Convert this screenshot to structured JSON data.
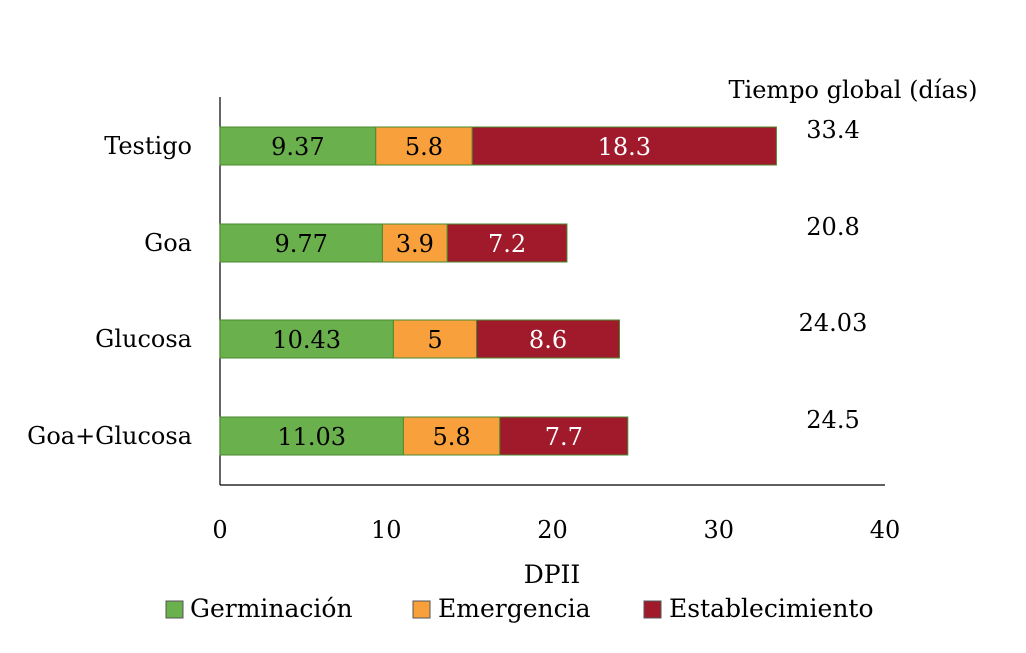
{
  "chart_data": {
    "type": "bar",
    "orientation": "horizontal",
    "stacked": true,
    "categories": [
      "Testigo",
      "Goa",
      "Glucosa",
      "Goa+Glucosa"
    ],
    "series": [
      {
        "name": "Germinación",
        "color": "#6ab04c",
        "values": [
          9.37,
          9.77,
          10.43,
          11.03
        ],
        "labels": [
          "9.37",
          "9.77",
          "10.43",
          "11.03"
        ]
      },
      {
        "name": "Emergencia",
        "color": "#f7a03c",
        "values": [
          5.8,
          3.9,
          5,
          5.8
        ],
        "labels": [
          "5.8",
          "3.9",
          "5",
          "5.8"
        ]
      },
      {
        "name": "Establecimiento",
        "color": "#a01a2c",
        "values": [
          18.3,
          7.2,
          8.6,
          7.7
        ],
        "labels": [
          "18.3",
          "7.2",
          "8.6",
          "7.7"
        ]
      }
    ],
    "totals_header": "Tiempo global (días)",
    "totals": [
      "33.4",
      "20.8",
      "24.03",
      "24.5"
    ],
    "xlabel": "DPII",
    "ylabel": "",
    "xlim": [
      0,
      40
    ],
    "xticks": [
      "0",
      "10",
      "20",
      "30",
      "40"
    ],
    "grid": false,
    "legend_position": "bottom"
  }
}
